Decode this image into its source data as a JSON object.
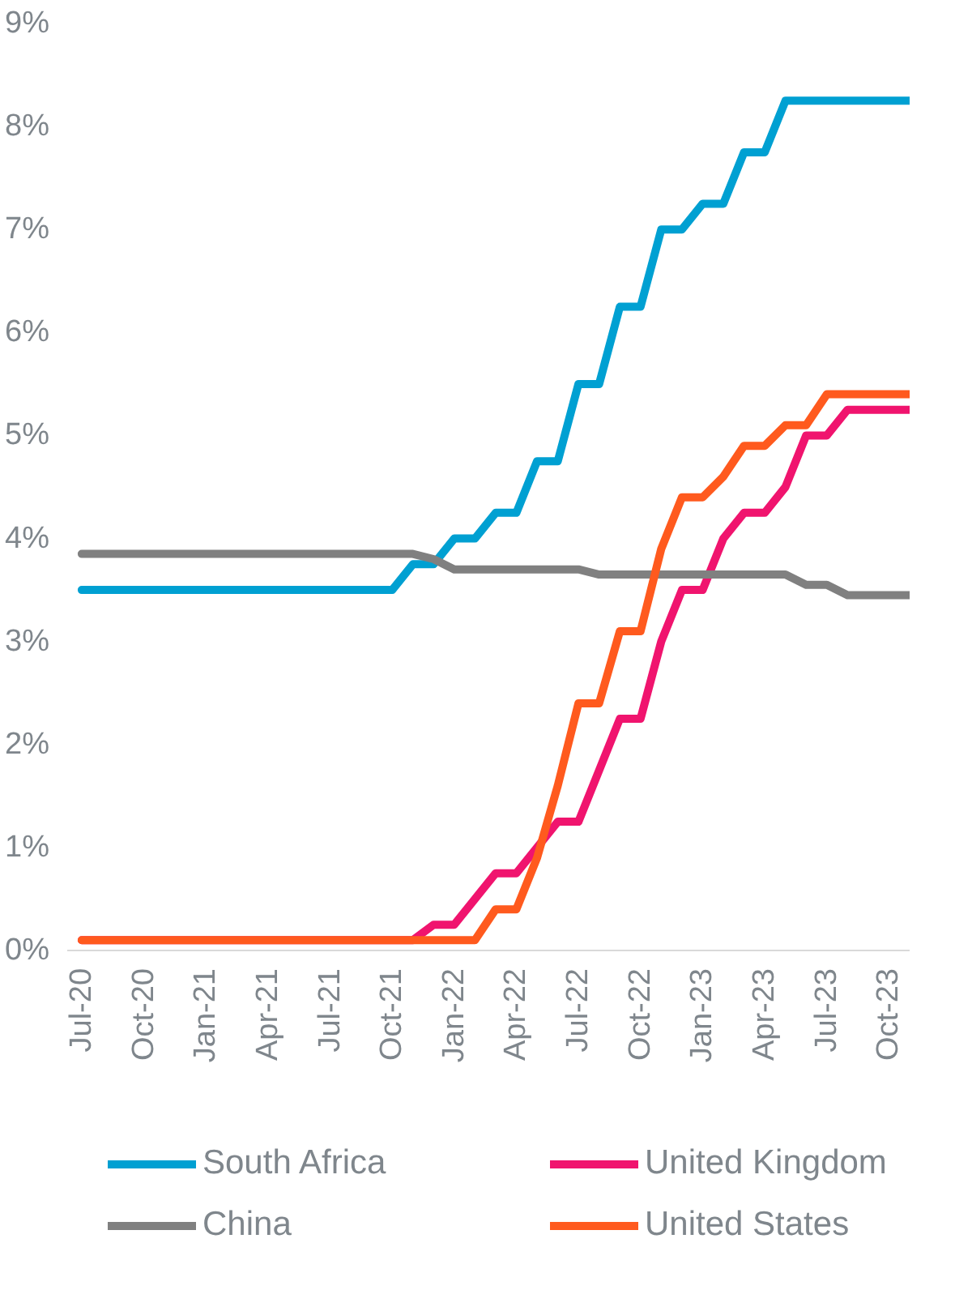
{
  "chart_data": {
    "type": "line",
    "categories": [
      "Jul-20",
      null,
      null,
      "Oct-20",
      null,
      null,
      "Jan-21",
      null,
      null,
      "Apr-21",
      null,
      null,
      "Jul-21",
      null,
      null,
      "Oct-21",
      null,
      null,
      "Jan-22",
      null,
      null,
      "Apr-22",
      null,
      null,
      "Jul-22",
      null,
      null,
      "Oct-22",
      null,
      null,
      "Jan-23",
      null,
      null,
      "Apr-23",
      null,
      null,
      "Jul-23",
      null,
      null,
      "Oct-23",
      null
    ],
    "series": [
      {
        "name": "South Africa",
        "color": "#00a0d2",
        "values": [
          3.5,
          3.5,
          3.5,
          3.5,
          3.5,
          3.5,
          3.5,
          3.5,
          3.5,
          3.5,
          3.5,
          3.5,
          3.5,
          3.5,
          3.5,
          3.5,
          3.75,
          3.75,
          4.0,
          4.0,
          4.25,
          4.25,
          4.75,
          4.75,
          5.5,
          5.5,
          6.25,
          6.25,
          7.0,
          7.0,
          7.25,
          7.25,
          7.75,
          7.75,
          8.25,
          8.25,
          8.25,
          8.25,
          8.25,
          8.25,
          8.25
        ]
      },
      {
        "name": "United Kingdom",
        "color": "#f0146e",
        "values": [
          0.1,
          0.1,
          0.1,
          0.1,
          0.1,
          0.1,
          0.1,
          0.1,
          0.1,
          0.1,
          0.1,
          0.1,
          0.1,
          0.1,
          0.1,
          0.1,
          0.1,
          0.25,
          0.25,
          0.5,
          0.75,
          0.75,
          1.0,
          1.25,
          1.25,
          1.75,
          2.25,
          2.25,
          3.0,
          3.5,
          3.5,
          4.0,
          4.25,
          4.25,
          4.5,
          5.0,
          5.0,
          5.25,
          5.25,
          5.25,
          5.25
        ]
      },
      {
        "name": "China",
        "color": "#808080",
        "values": [
          3.85,
          3.85,
          3.85,
          3.85,
          3.85,
          3.85,
          3.85,
          3.85,
          3.85,
          3.85,
          3.85,
          3.85,
          3.85,
          3.85,
          3.85,
          3.85,
          3.85,
          3.8,
          3.7,
          3.7,
          3.7,
          3.7,
          3.7,
          3.7,
          3.7,
          3.65,
          3.65,
          3.65,
          3.65,
          3.65,
          3.65,
          3.65,
          3.65,
          3.65,
          3.65,
          3.55,
          3.55,
          3.45,
          3.45,
          3.45,
          3.45
        ]
      },
      {
        "name": "United States",
        "color": "#ff5a1e",
        "values": [
          0.1,
          0.1,
          0.1,
          0.1,
          0.1,
          0.1,
          0.1,
          0.1,
          0.1,
          0.1,
          0.1,
          0.1,
          0.1,
          0.1,
          0.1,
          0.1,
          0.1,
          0.1,
          0.1,
          0.1,
          0.4,
          0.4,
          0.9,
          1.6,
          2.4,
          2.4,
          3.1,
          3.1,
          3.9,
          4.4,
          4.4,
          4.6,
          4.9,
          4.9,
          5.1,
          5.1,
          5.4,
          5.4,
          5.4,
          5.4,
          5.4
        ]
      }
    ],
    "ylim": [
      0,
      9
    ],
    "yticks": [
      {
        "value": 0,
        "label": "0%"
      },
      {
        "value": 1,
        "label": "1%"
      },
      {
        "value": 2,
        "label": "2%"
      },
      {
        "value": 3,
        "label": "3%"
      },
      {
        "value": 4,
        "label": "4%"
      },
      {
        "value": 5,
        "label": "5%"
      },
      {
        "value": 6,
        "label": "6%"
      },
      {
        "value": 7,
        "label": "7%"
      },
      {
        "value": 8,
        "label": "8%"
      },
      {
        "value": 9,
        "label": "9%"
      }
    ],
    "grid": false,
    "legend": "bottom",
    "line_style": "solid",
    "marker": "none"
  }
}
